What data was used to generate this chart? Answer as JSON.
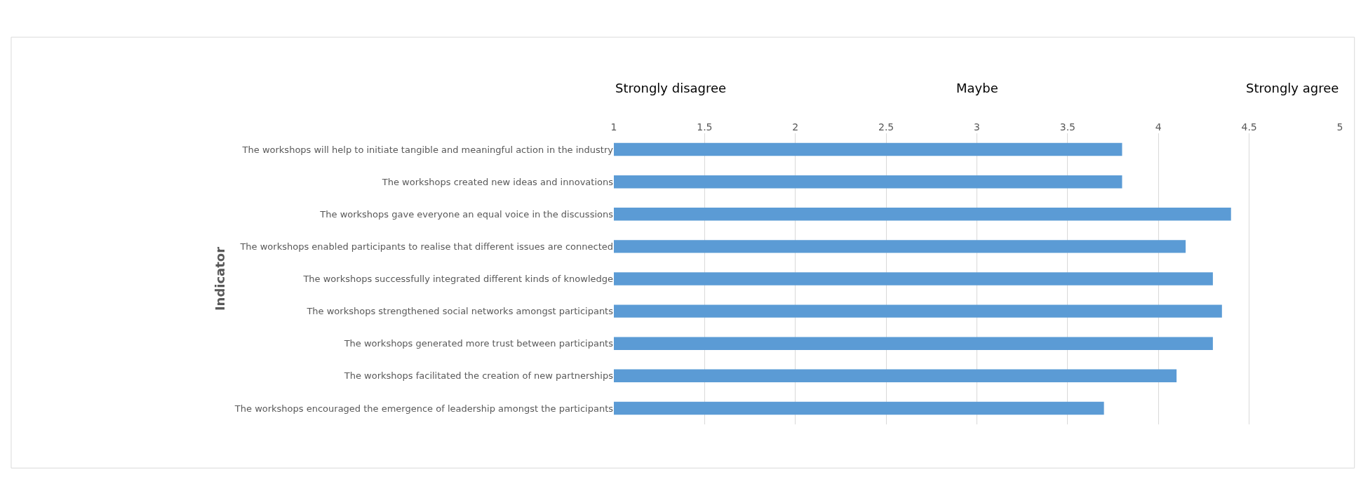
{
  "chart_data": {
    "type": "bar",
    "orientation": "horizontal",
    "ylabel": "Indicator",
    "categories": [
      "The workshops will help to initiate tangible and meaningful action in the industry",
      "The workshops created new ideas and innovations",
      "The workshops gave everyone an equal voice in the discussions",
      "The workshops enabled participants to realise that different issues are connected",
      "The workshops successfully integrated different kinds of knowledge",
      "The workshops strengthened social networks amongst participants",
      "The workshops generated more trust between participants",
      "The workshops facilitated the creation of new partnerships",
      "The workshops encouraged the emergence of leadership amongst the participants"
    ],
    "values": [
      3.8,
      3.8,
      4.4,
      4.15,
      4.3,
      4.35,
      4.3,
      4.1,
      3.7
    ],
    "color": "#5b9bd5",
    "xlim": [
      1,
      5
    ],
    "xticks": [
      1,
      1.5,
      2,
      2.5,
      3,
      3.5,
      4,
      4.5,
      5
    ],
    "grid": "x",
    "annotations": [
      "Strongly disagree",
      "Maybe",
      "Strongly agree"
    ]
  }
}
